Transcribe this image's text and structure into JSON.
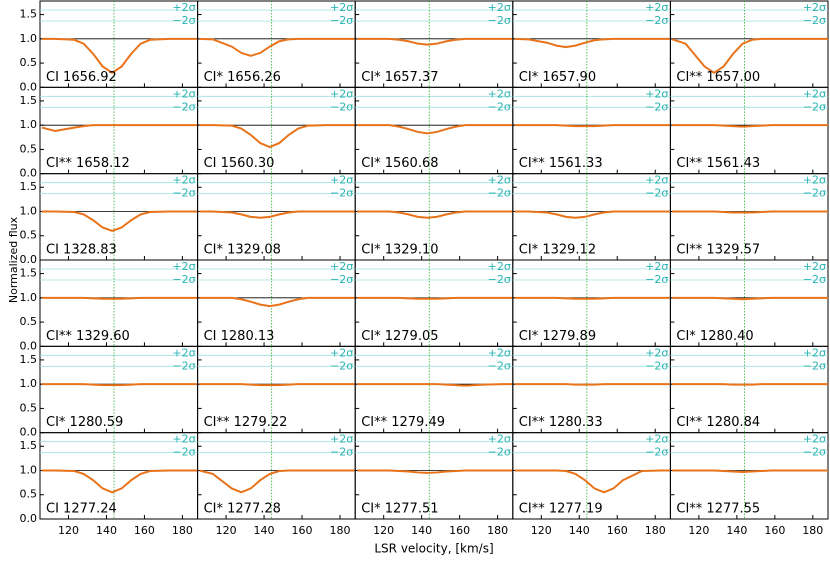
{
  "chart_data": {
    "type": "line",
    "y_label": "Normalized flux",
    "x_label": "LSR velocity, [km/s]",
    "x": [
      106,
      113,
      123,
      128,
      133,
      138,
      143,
      148,
      153,
      158,
      163,
      173,
      183,
      188
    ],
    "xlim": [
      105,
      188
    ],
    "xticks": [
      120,
      140,
      160,
      180
    ],
    "ylim": [
      0,
      1.78
    ],
    "yticks": [
      {
        "value": 0,
        "label": "0.0"
      },
      {
        "value": 0.5,
        "label": "0.5"
      },
      {
        "value": 1,
        "label": "1.0"
      },
      {
        "value": 1.5,
        "label": "1.5"
      }
    ],
    "marker_velocity": 144,
    "continuum": 1,
    "residual_labels": [
      "+2σ",
      "−2σ"
    ],
    "color": "#e8731a",
    "panels": [
      {
        "name": "CI 1656.92",
        "values": [
          1,
          1,
          0.98,
          0.9,
          0.69,
          0.43,
          0.3,
          0.43,
          0.69,
          0.9,
          0.98,
          1,
          1,
          1
        ]
      },
      {
        "name": "CI* 1656.26",
        "values": [
          1,
          0.99,
          0.84,
          0.71,
          0.65,
          0.71,
          0.84,
          0.95,
          0.99,
          1,
          1,
          1,
          1,
          1
        ]
      },
      {
        "name": "CI* 1657.37",
        "values": [
          1,
          1,
          1,
          0.98,
          0.95,
          0.9,
          0.88,
          0.9,
          0.95,
          0.98,
          1,
          1,
          1,
          1
        ]
      },
      {
        "name": "CI* 1657.90",
        "values": [
          1,
          0.99,
          0.92,
          0.86,
          0.83,
          0.86,
          0.92,
          0.97,
          0.99,
          1,
          1,
          1,
          1,
          1
        ]
      },
      {
        "name": "CI** 1657.00",
        "values": [
          0.99,
          0.9,
          0.43,
          0.3,
          0.43,
          0.69,
          0.9,
          0.98,
          1,
          1,
          1,
          1,
          1,
          1
        ]
      },
      {
        "name": "CI** 1658.12",
        "values": [
          0.95,
          0.88,
          0.95,
          0.98,
          1,
          1,
          1,
          1,
          1,
          1,
          1,
          1,
          1,
          1
        ]
      },
      {
        "name": "CI 1560.30",
        "values": [
          1,
          1,
          0.99,
          0.93,
          0.8,
          0.63,
          0.55,
          0.63,
          0.8,
          0.93,
          0.99,
          1,
          1,
          1
        ]
      },
      {
        "name": "CI* 1560.68",
        "values": [
          1,
          1,
          1,
          0.97,
          0.92,
          0.86,
          0.83,
          0.86,
          0.92,
          0.97,
          1,
          1,
          1,
          1
        ]
      },
      {
        "name": "CI** 1561.33",
        "values": [
          1,
          1,
          1,
          1,
          0.99,
          0.98,
          0.98,
          0.98,
          0.99,
          1,
          1,
          1,
          1,
          1
        ]
      },
      {
        "name": "CI** 1561.43",
        "values": [
          1,
          1,
          1,
          1,
          0.99,
          0.98,
          0.97,
          0.98,
          0.99,
          1,
          1,
          1,
          1,
          1
        ]
      },
      {
        "name": "CI 1328.83",
        "values": [
          1,
          1,
          0.99,
          0.94,
          0.82,
          0.67,
          0.6,
          0.67,
          0.82,
          0.94,
          0.99,
          1,
          1,
          1
        ]
      },
      {
        "name": "CI* 1329.08",
        "values": [
          1,
          1,
          0.98,
          0.94,
          0.89,
          0.87,
          0.89,
          0.94,
          0.98,
          1,
          1,
          1,
          1,
          1
        ]
      },
      {
        "name": "CI* 1329.10",
        "values": [
          1,
          1,
          1,
          0.98,
          0.94,
          0.89,
          0.87,
          0.89,
          0.94,
          0.98,
          1,
          1,
          1,
          1
        ]
      },
      {
        "name": "CI* 1329.12",
        "values": [
          1,
          1,
          0.98,
          0.94,
          0.89,
          0.87,
          0.89,
          0.94,
          0.98,
          1,
          1,
          1,
          1,
          1
        ]
      },
      {
        "name": "CI** 1329.57",
        "values": [
          1,
          1,
          1,
          1,
          0.99,
          0.98,
          0.98,
          0.98,
          0.99,
          1,
          1,
          1,
          1,
          1
        ]
      },
      {
        "name": "CI** 1329.60",
        "values": [
          1,
          1,
          1,
          1,
          0.99,
          0.98,
          0.98,
          0.98,
          0.99,
          1,
          1,
          1,
          1,
          1
        ]
      },
      {
        "name": "CI 1280.13",
        "values": [
          1,
          1,
          1,
          0.97,
          0.92,
          0.86,
          0.83,
          0.86,
          0.92,
          0.97,
          1,
          1,
          1,
          1
        ]
      },
      {
        "name": "CI* 1279.05",
        "values": [
          1,
          1,
          1,
          1,
          0.99,
          0.98,
          0.98,
          0.98,
          0.99,
          1,
          1,
          1,
          1,
          1
        ]
      },
      {
        "name": "CI* 1279.89",
        "values": [
          1,
          1,
          1,
          1,
          0.99,
          0.98,
          0.98,
          0.98,
          0.99,
          1,
          1,
          1,
          1,
          1
        ]
      },
      {
        "name": "CI* 1280.40",
        "values": [
          1,
          1,
          1,
          1,
          0.99,
          0.98,
          0.97,
          0.98,
          0.99,
          1,
          1,
          1,
          1,
          1
        ]
      },
      {
        "name": "CI* 1280.59",
        "values": [
          1,
          1,
          1,
          1,
          0.99,
          0.98,
          0.98,
          0.98,
          0.99,
          1,
          1,
          1,
          1,
          1
        ]
      },
      {
        "name": "CI** 1279.22",
        "values": [
          1,
          1,
          1,
          1,
          0.99,
          0.98,
          0.98,
          0.98,
          0.99,
          1,
          1,
          1,
          1,
          1
        ]
      },
      {
        "name": "CI** 1279.49",
        "values": [
          1,
          1,
          1,
          1,
          1,
          1,
          1,
          1,
          0.99,
          0.98,
          0.97,
          0.99,
          1,
          1
        ]
      },
      {
        "name": "CI** 1280.33",
        "values": [
          1,
          1,
          1,
          1,
          1,
          0.99,
          0.99,
          0.99,
          1,
          1,
          1,
          1,
          1,
          1
        ]
      },
      {
        "name": "CI** 1280.84",
        "values": [
          1,
          1,
          1,
          1,
          1,
          0.99,
          0.99,
          0.99,
          1,
          1,
          1,
          1,
          1,
          1
        ]
      },
      {
        "name": "CI 1277.24",
        "values": [
          1,
          1,
          0.99,
          0.93,
          0.8,
          0.63,
          0.55,
          0.63,
          0.8,
          0.93,
          0.99,
          1,
          1,
          1
        ]
      },
      {
        "name": "CI* 1277.28",
        "values": [
          1,
          0.93,
          0.63,
          0.55,
          0.63,
          0.8,
          0.93,
          0.99,
          1,
          1,
          1,
          1,
          1,
          1
        ]
      },
      {
        "name": "CI* 1277.51",
        "values": [
          1,
          1,
          1,
          0.99,
          0.98,
          0.96,
          0.95,
          0.96,
          0.98,
          0.99,
          1,
          1,
          1,
          1
        ]
      },
      {
        "name": "CI** 1277.19",
        "values": [
          1,
          1,
          1,
          1,
          0.99,
          0.93,
          0.8,
          0.63,
          0.55,
          0.63,
          0.8,
          0.99,
          1,
          1
        ]
      },
      {
        "name": "CI** 1277.55",
        "values": [
          1,
          1,
          1,
          1,
          0.99,
          0.98,
          0.97,
          0.98,
          0.99,
          1,
          1,
          1,
          1,
          1
        ]
      }
    ]
  }
}
